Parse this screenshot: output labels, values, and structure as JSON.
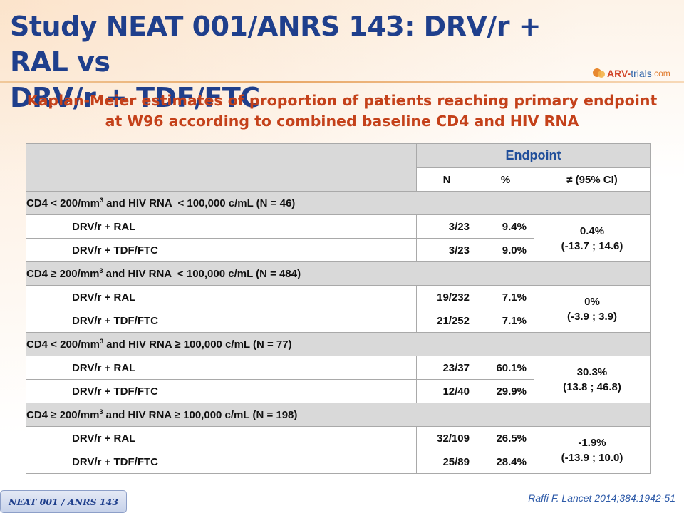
{
  "header": {
    "title_line1": "Study NEAT 001/ANRS 143: DRV/r + RAL vs",
    "title_line2": "DRV/r + TDF/FTC",
    "logo_part1": "ARV-",
    "logo_part2": "trials",
    "logo_part3": ".com"
  },
  "subtitle": {
    "line1": "Kaplan-Meier estimates of proportion of patients reaching primary endpoint",
    "line2": "at W96 according to combined baseline CD4 and HIV RNA"
  },
  "table": {
    "endpoint_header": "Endpoint",
    "col_n": "N",
    "col_pct": "%",
    "col_diff": "≠ (95% CI)",
    "groups": [
      {
        "label_a": "CD4 < 200/mm",
        "sup": "3",
        "label_b": " and HIV RNA  < 100,000 c/mL (N = 46)",
        "arms": [
          {
            "name": "DRV/r + RAL",
            "n": "3/23",
            "pct": "9.4%"
          },
          {
            "name": "DRV/r + TDF/FTC",
            "n": "3/23",
            "pct": "9.0%"
          }
        ],
        "diff": "0.4%",
        "ci": "(-13.7 ; 14.6)"
      },
      {
        "label_a": "CD4 ≥ 200/mm",
        "sup": "3",
        "label_b": " and HIV RNA  < 100,000 c/mL (N = 484)",
        "arms": [
          {
            "name": "DRV/r + RAL",
            "n": "19/232",
            "pct": "7.1%"
          },
          {
            "name": "DRV/r + TDF/FTC",
            "n": "21/252",
            "pct": "7.1%"
          }
        ],
        "diff": "0%",
        "ci": "(-3.9 ; 3.9)"
      },
      {
        "label_a": "CD4 < 200/mm",
        "sup": "3",
        "label_b": " and HIV RNA ≥ 100,000 c/mL (N = 77)",
        "arms": [
          {
            "name": "DRV/r + RAL",
            "n": "23/37",
            "pct": "60.1%"
          },
          {
            "name": "DRV/r + TDF/FTC",
            "n": "12/40",
            "pct": "29.9%"
          }
        ],
        "diff": "30.3%",
        "ci": "(13.8 ; 46.8)"
      },
      {
        "label_a": "CD4 ≥ 200/mm",
        "sup": "3",
        "label_b": " and HIV RNA ≥ 100,000 c/mL (N = 198)",
        "arms": [
          {
            "name": "DRV/r + RAL",
            "n": "32/109",
            "pct": "26.5%"
          },
          {
            "name": "DRV/r + TDF/FTC",
            "n": "25/89",
            "pct": "28.4%"
          }
        ],
        "diff": "-1.9%",
        "ci": "(-13.9 ; 10.0)"
      }
    ]
  },
  "footer": {
    "tag": "NEAT 001 / ANRS 143",
    "citation": "Raffi F. Lancet 2014;384:1942-51"
  }
}
